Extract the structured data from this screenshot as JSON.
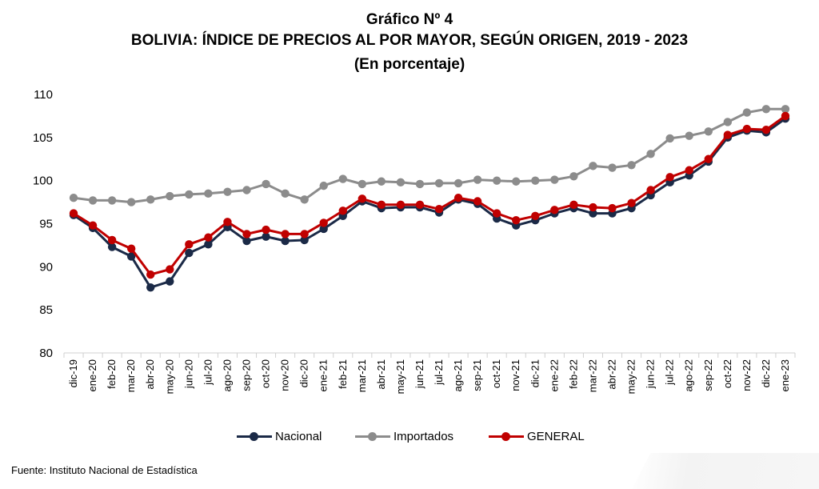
{
  "chart_data": {
    "type": "line",
    "title_line1": "Gráfico Nº 4",
    "title_line2": "BOLIVIA: ÍNDICE DE PRECIOS AL POR MAYOR, SEGÚN ORIGEN, 2019 - 2023",
    "title_line3": "(En porcentaje)",
    "ylim": [
      80,
      110
    ],
    "yticks": [
      80,
      85,
      90,
      95,
      100,
      105,
      110
    ],
    "grid": false,
    "legend_position": "bottom",
    "categories": [
      "dic-19",
      "ene-20",
      "feb-20",
      "mar-20",
      "abr-20",
      "may-20",
      "jun-20",
      "jul-20",
      "ago-20",
      "sep-20",
      "oct-20",
      "nov-20",
      "dic-20",
      "ene-21",
      "feb-21",
      "mar-21",
      "abr-21",
      "may-21",
      "jun-21",
      "jul-21",
      "ago-21",
      "sep-21",
      "oct-21",
      "nov-21",
      "dic-21",
      "ene-22",
      "feb-22",
      "mar-22",
      "abr-22",
      "may-22",
      "jun-22",
      "jul-22",
      "ago-22",
      "sep-22",
      "oct-22",
      "nov-22",
      "dic-22",
      "ene-23"
    ],
    "series": [
      {
        "name": "Nacional",
        "color": "#1b2a47",
        "values": [
          96.0,
          94.5,
          92.3,
          91.2,
          87.6,
          88.3,
          91.6,
          92.6,
          94.6,
          93.0,
          93.5,
          93.0,
          93.1,
          94.4,
          95.9,
          97.6,
          96.8,
          96.9,
          96.9,
          96.3,
          97.8,
          97.3,
          95.6,
          94.8,
          95.4,
          96.2,
          96.8,
          96.2,
          96.2,
          96.8,
          98.3,
          99.8,
          100.6,
          102.2,
          105.0,
          105.8,
          105.6,
          107.2
        ]
      },
      {
        "name": "Importados",
        "color": "#8c8c8c",
        "values": [
          98.0,
          97.7,
          97.7,
          97.5,
          97.8,
          98.2,
          98.4,
          98.5,
          98.7,
          98.9,
          99.6,
          98.5,
          97.8,
          99.4,
          100.2,
          99.6,
          99.9,
          99.8,
          99.6,
          99.7,
          99.7,
          100.1,
          100.0,
          99.9,
          100.0,
          100.1,
          100.5,
          101.7,
          101.5,
          101.8,
          103.1,
          104.9,
          105.2,
          105.7,
          106.8,
          107.9,
          108.3,
          108.3
        ]
      },
      {
        "name": "GENERAL",
        "color": "#c00000",
        "values": [
          96.2,
          94.8,
          93.1,
          92.1,
          89.1,
          89.7,
          92.6,
          93.4,
          95.2,
          93.8,
          94.3,
          93.8,
          93.8,
          95.1,
          96.5,
          97.9,
          97.2,
          97.2,
          97.2,
          96.7,
          98.0,
          97.6,
          96.2,
          95.4,
          95.9,
          96.6,
          97.2,
          96.9,
          96.8,
          97.4,
          98.9,
          100.4,
          101.2,
          102.5,
          105.3,
          106.0,
          105.9,
          107.5
        ]
      }
    ],
    "source": "Fuente: Instituto Nacional de Estadística"
  }
}
